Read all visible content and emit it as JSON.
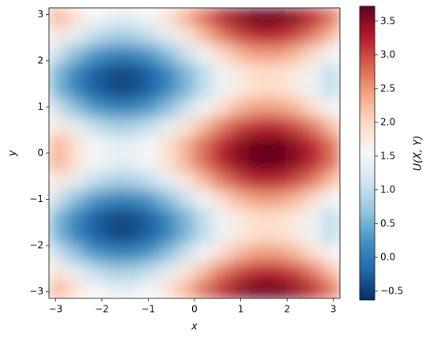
{
  "chart_data": {
    "type": "heatmap",
    "x_label": "x",
    "y_label": "y",
    "colorbar_label": "U(X, Y)",
    "colormap": "RdBu_r",
    "xlim": [
      -3.14159,
      3.14159
    ],
    "ylim": [
      -3.14159,
      3.14159
    ],
    "xticks": [
      {
        "value": -3,
        "label": "−3"
      },
      {
        "value": -2,
        "label": "−2"
      },
      {
        "value": -1,
        "label": "−1"
      },
      0,
      1,
      2,
      3
    ],
    "yticks": [
      {
        "value": -3,
        "label": "−3"
      },
      {
        "value": -2,
        "label": "−2"
      },
      {
        "value": -1,
        "label": "−1"
      },
      0,
      1,
      2,
      3
    ],
    "clim": [
      -0.63,
      3.72
    ],
    "cticks": [
      {
        "value": -0.5,
        "label": "−0.5"
      },
      {
        "value": 0,
        "label": "0.0"
      },
      0.5,
      {
        "value": 1,
        "label": "1.0"
      },
      1.5,
      {
        "value": 2,
        "label": "2.0"
      },
      2.5,
      {
        "value": 3,
        "label": "3.0"
      },
      3.5
    ],
    "z": [
      [
        2.3,
        1.86,
        1.53,
        1.35,
        1.35,
        1.53,
        1.86,
        2.3,
        2.76,
        3.2,
        3.53,
        3.71,
        3.71,
        3.53,
        3.2,
        2.76
      ],
      [
        1.78,
        1.34,
        1.01,
        0.83,
        0.83,
        1.01,
        1.34,
        1.78,
        2.24,
        2.68,
        3.01,
        3.19,
        3.19,
        3.01,
        2.68,
        2.24
      ],
      [
        1.06,
        0.62,
        0.29,
        0.11,
        0.11,
        0.29,
        0.62,
        1.06,
        1.52,
        1.96,
        2.29,
        2.47,
        2.47,
        2.29,
        1.96,
        1.52
      ],
      [
        0.54,
        0.1,
        -0.23,
        -0.41,
        -0.41,
        -0.23,
        0.1,
        0.54,
        1.0,
        1.44,
        1.77,
        1.95,
        1.95,
        1.77,
        1.44,
        1.0
      ],
      [
        0.54,
        0.1,
        -0.23,
        -0.41,
        -0.41,
        -0.23,
        0.1,
        0.54,
        1.0,
        1.44,
        1.77,
        1.95,
        1.95,
        1.77,
        1.44,
        1.0
      ],
      [
        1.06,
        0.62,
        0.29,
        0.11,
        0.11,
        0.29,
        0.62,
        1.06,
        1.52,
        1.96,
        2.29,
        2.47,
        2.47,
        2.29,
        1.96,
        1.52
      ],
      [
        1.78,
        1.34,
        1.01,
        0.83,
        0.83,
        1.01,
        1.34,
        1.78,
        2.24,
        2.68,
        3.01,
        3.19,
        3.19,
        3.01,
        2.68,
        2.24
      ],
      [
        2.3,
        1.86,
        1.53,
        1.35,
        1.35,
        1.53,
        1.86,
        2.3,
        2.76,
        3.2,
        3.53,
        3.71,
        3.71,
        3.53,
        3.2,
        2.76
      ],
      [
        2.3,
        1.86,
        1.53,
        1.35,
        1.35,
        1.53,
        1.86,
        2.3,
        2.76,
        3.2,
        3.53,
        3.71,
        3.71,
        3.53,
        3.2,
        2.76
      ],
      [
        1.78,
        1.34,
        1.01,
        0.83,
        0.83,
        1.01,
        1.34,
        1.78,
        2.24,
        2.68,
        3.01,
        3.19,
        3.19,
        3.01,
        2.68,
        2.24
      ],
      [
        1.06,
        0.62,
        0.29,
        0.11,
        0.11,
        0.29,
        0.62,
        1.06,
        1.52,
        1.96,
        2.29,
        2.47,
        2.47,
        2.29,
        1.96,
        1.52
      ],
      [
        0.54,
        0.1,
        -0.23,
        -0.41,
        -0.41,
        -0.23,
        0.1,
        0.54,
        1.0,
        1.44,
        1.77,
        1.95,
        1.95,
        1.77,
        1.44,
        1.0
      ],
      [
        0.54,
        0.1,
        -0.23,
        -0.41,
        -0.41,
        -0.23,
        0.1,
        0.54,
        1.0,
        1.44,
        1.77,
        1.95,
        1.95,
        1.77,
        1.44,
        1.0
      ],
      [
        1.06,
        0.62,
        0.29,
        0.11,
        0.11,
        0.29,
        0.62,
        1.06,
        1.52,
        1.96,
        2.29,
        2.47,
        2.47,
        2.29,
        1.96,
        1.52
      ],
      [
        1.78,
        1.34,
        1.01,
        0.83,
        0.83,
        1.01,
        1.34,
        1.78,
        2.24,
        2.68,
        3.01,
        3.19,
        3.19,
        3.01,
        2.68,
        2.24
      ],
      [
        2.3,
        1.86,
        1.53,
        1.35,
        1.35,
        1.53,
        1.86,
        2.3,
        2.76,
        3.2,
        3.53,
        3.71,
        3.71,
        3.53,
        3.2,
        2.76
      ]
    ]
  }
}
